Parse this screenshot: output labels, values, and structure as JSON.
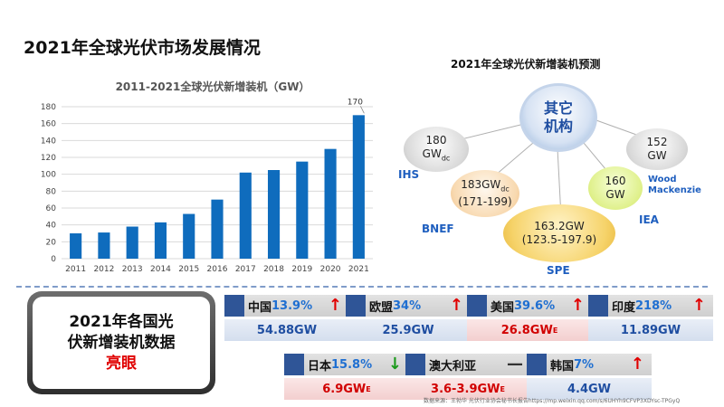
{
  "page_title": "2021年全球光伏市场发展情况",
  "chart_data": {
    "type": "bar",
    "title": "2011-2021全球光伏新增装机（GW）",
    "categories": [
      "2011",
      "2012",
      "2013",
      "2014",
      "2015",
      "2016",
      "2017",
      "2018",
      "2019",
      "2020",
      "2021"
    ],
    "values": [
      30,
      31,
      38,
      43,
      53,
      70,
      102,
      105,
      115,
      130,
      170
    ],
    "data_labels": {
      "2021": "170"
    },
    "ylim": [
      0,
      180
    ],
    "yticks": [
      0,
      20,
      40,
      60,
      80,
      100,
      120,
      140,
      160,
      180
    ],
    "grid": true,
    "colors": {
      "bar": "#0f6cbd",
      "grid": "#d9d9d9"
    }
  },
  "forecast": {
    "title": "2021年全球光伏新增装机预测",
    "center": {
      "line1": "其它",
      "line2": "机构"
    },
    "bubbles": {
      "ihs": {
        "value": "180",
        "unit": "GW",
        "unit_sub": "dc",
        "label": "IHS"
      },
      "bnef": {
        "value": "183GW",
        "unit_sub": "dc",
        "range": "(171-199)",
        "label": "BNEF"
      },
      "spe": {
        "value": "163.2GW",
        "range": "(123.5-197.9)",
        "label": "SPE"
      },
      "iea": {
        "value": "160",
        "unit": "GW",
        "label": "IEA"
      },
      "wood": {
        "value": "152",
        "unit": "GW",
        "label_line1": "Wood",
        "label_line2": "Mackenzie"
      }
    }
  },
  "summary": {
    "line1": "2021年各国光",
    "line2": "伏新增装机数据",
    "line3": "亮眼"
  },
  "countries": {
    "china": {
      "name": "中国",
      "pct": "13.9%",
      "arrow": "↑",
      "value": "54.88GW",
      "sup": ""
    },
    "eu": {
      "name": "欧盟",
      "pct": "34%",
      "arrow": "↑",
      "value": "25.9GW",
      "sup": ""
    },
    "us": {
      "name": "美国",
      "pct": "39.6%",
      "arrow": "↑",
      "value": "26.8GW",
      "sup": "E"
    },
    "india": {
      "name": "印度",
      "pct": "218%",
      "arrow": "↑",
      "value": "11.89GW",
      "sup": ""
    },
    "japan": {
      "name": "日本",
      "pct": "15.8%",
      "arrow": "↓",
      "value": "6.9GW",
      "sup": "E"
    },
    "australia": {
      "name": "澳大利亚",
      "pct": "",
      "arrow": "—",
      "value": "3.6-3.9GW",
      "sup": "E"
    },
    "korea": {
      "name": "韩国",
      "pct": "7%",
      "arrow": "↑",
      "value": "4.4GW",
      "sup": ""
    }
  },
  "footer_note": "数据来源：王勃华   光伏行业协会秘书长报告https://mp.weixin.qq.com/s/6UHYh9CFVP3XDYsc-TPGyQ"
}
